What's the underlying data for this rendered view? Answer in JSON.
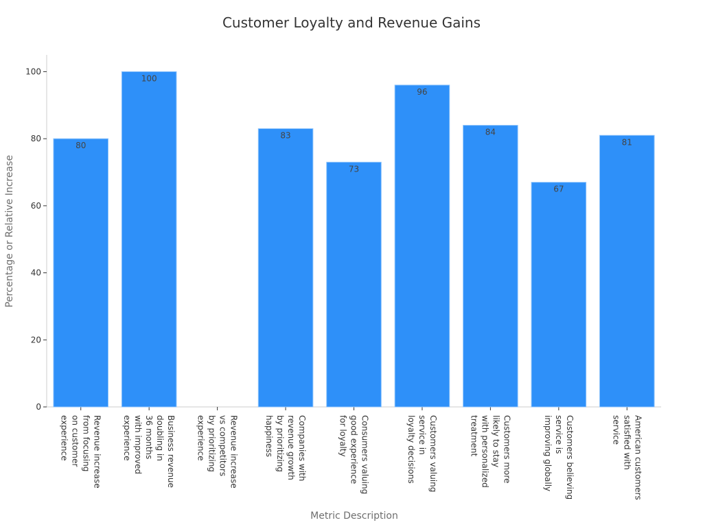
{
  "chart_data": {
    "type": "bar",
    "title": "Customer Loyalty and Revenue Gains",
    "xlabel": "Metric Description",
    "ylabel": "Percentage or Relative Increase",
    "ylim": [
      0,
      105
    ],
    "yticks": [
      0,
      20,
      40,
      60,
      80,
      100
    ],
    "grid": false,
    "bar_color": "#2e90f9",
    "categories": [
      "Revenue increase from focusing on customer experience",
      "Business revenue doubling in 36 months with improved experience",
      "Revenue increase vs competitors by prioritizing experience",
      "Companies with revenue growth by prioritizing happiness",
      "Consumers valuing good experience for loyalty",
      "Customers valuing service in loyalty decisions",
      "Customers more likely to stay with personalized treatment",
      "Customers believing service is improving globally",
      "American customers satisfied with service"
    ],
    "category_lines": [
      [
        "Revenue increase",
        "from focusing",
        "on customer",
        "experience"
      ],
      [
        "Business revenue",
        "doubling in",
        "36 months",
        "with improved",
        "experience"
      ],
      [
        "Revenue increase",
        "vs competitors",
        "by prioritizing",
        "experience"
      ],
      [
        "Companies with",
        "revenue growth",
        "by prioritizing",
        "happiness"
      ],
      [
        "Consumers valuing",
        "good experience",
        "for loyalty"
      ],
      [
        "Customers valuing",
        "service in",
        "loyalty decisions"
      ],
      [
        "Customers more",
        "likely to stay",
        "with personalized",
        "treatment"
      ],
      [
        "Customers believing",
        "service is",
        "improving globally"
      ],
      [
        "American customers",
        "satisfied with",
        "service"
      ]
    ],
    "values": [
      80,
      100,
      null,
      83,
      73,
      96,
      84,
      67,
      81
    ],
    "data_labels": [
      "80",
      "100",
      "",
      "83",
      "73",
      "96",
      "84",
      "67",
      "81"
    ]
  }
}
